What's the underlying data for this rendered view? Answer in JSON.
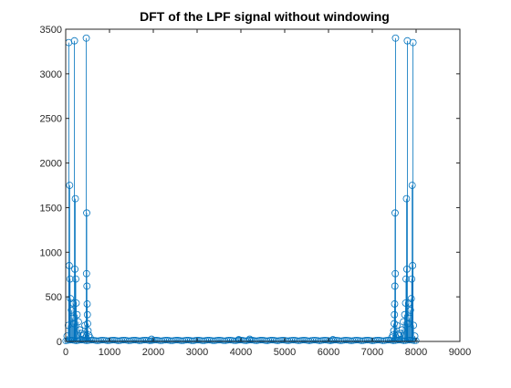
{
  "chart_data": {
    "type": "stem",
    "title": "DFT of the LPF signal without windowing",
    "xlabel": "",
    "ylabel": "",
    "xlim": [
      0,
      9000
    ],
    "ylim": [
      0,
      3500
    ],
    "xticks": [
      0,
      1000,
      2000,
      3000,
      4000,
      5000,
      6000,
      7000,
      8000,
      9000
    ],
    "yticks": [
      0,
      500,
      1000,
      1500,
      2000,
      2500,
      3000,
      3500
    ],
    "grid": false,
    "legend": "none",
    "color": "#0072BD",
    "points": [
      [
        30,
        60
      ],
      [
        60,
        180
      ],
      [
        70,
        3350
      ],
      [
        80,
        850
      ],
      [
        90,
        1750
      ],
      [
        100,
        700
      ],
      [
        110,
        480
      ],
      [
        130,
        350
      ],
      [
        150,
        260
      ],
      [
        170,
        430
      ],
      [
        190,
        200
      ],
      [
        200,
        3370
      ],
      [
        210,
        810
      ],
      [
        220,
        1600
      ],
      [
        230,
        700
      ],
      [
        240,
        430
      ],
      [
        260,
        300
      ],
      [
        290,
        220
      ],
      [
        320,
        130
      ],
      [
        350,
        90
      ],
      [
        380,
        60
      ],
      [
        410,
        80
      ],
      [
        440,
        180
      ],
      [
        470,
        3400
      ],
      [
        475,
        760
      ],
      [
        480,
        1440
      ],
      [
        485,
        620
      ],
      [
        490,
        420
      ],
      [
        495,
        300
      ],
      [
        500,
        200
      ],
      [
        510,
        120
      ],
      [
        530,
        70
      ],
      [
        560,
        40
      ],
      [
        1960,
        25
      ],
      [
        3950,
        20
      ],
      [
        4200,
        25
      ],
      [
        6100,
        20
      ],
      [
        7440,
        40
      ],
      [
        7470,
        70
      ],
      [
        7490,
        120
      ],
      [
        7500,
        200
      ],
      [
        7505,
        300
      ],
      [
        7510,
        420
      ],
      [
        7515,
        620
      ],
      [
        7520,
        1440
      ],
      [
        7525,
        760
      ],
      [
        7530,
        3400
      ],
      [
        7560,
        180
      ],
      [
        7590,
        80
      ],
      [
        7620,
        60
      ],
      [
        7650,
        90
      ],
      [
        7680,
        130
      ],
      [
        7710,
        220
      ],
      [
        7740,
        300
      ],
      [
        7760,
        430
      ],
      [
        7770,
        700
      ],
      [
        7780,
        1600
      ],
      [
        7790,
        810
      ],
      [
        7800,
        3370
      ],
      [
        7810,
        200
      ],
      [
        7830,
        430
      ],
      [
        7850,
        260
      ],
      [
        7870,
        350
      ],
      [
        7890,
        480
      ],
      [
        7900,
        700
      ],
      [
        7910,
        1750
      ],
      [
        7920,
        850
      ],
      [
        7930,
        3350
      ],
      [
        7940,
        180
      ],
      [
        7970,
        60
      ]
    ],
    "baseline_band": {
      "x_start": 0,
      "x_end": 8000,
      "max_value": 15
    }
  }
}
